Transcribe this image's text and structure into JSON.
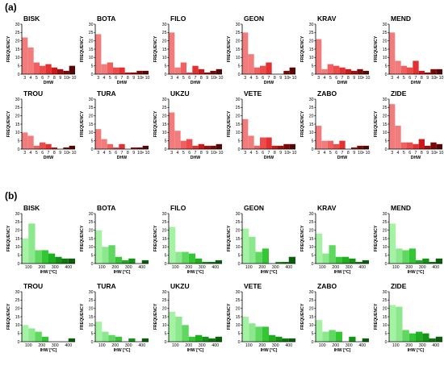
{
  "panel_labels": [
    "(a)",
    "(b)"
  ],
  "chart_data": [
    {
      "group": "(a)",
      "type": "bar",
      "title": "BISK",
      "xlabel": "DHW",
      "ylabel": "FREQUENCY",
      "ylim": [
        0,
        30
      ],
      "yticks": [
        0,
        5,
        10,
        15,
        20,
        25,
        30
      ],
      "categories": [
        "3",
        "4",
        "5",
        "6",
        "7",
        "8",
        "9",
        "10",
        "> 10"
      ],
      "values": [
        22,
        16,
        7,
        5,
        6,
        4,
        3,
        2,
        5
      ],
      "colors": [
        "#f27b7b",
        "#f27b7b",
        "#f06060",
        "#ee4b4b",
        "#e33030",
        "#cc1a1a",
        "#a01010",
        "#7a0a0a",
        "#5a0505"
      ]
    },
    {
      "group": "(a)",
      "type": "bar",
      "title": "BOTA",
      "xlabel": "DHW",
      "ylabel": "FREQUENCY",
      "ylim": [
        0,
        30
      ],
      "yticks": [
        0,
        5,
        10,
        15,
        20,
        25,
        30
      ],
      "categories": [
        "3",
        "4",
        "5",
        "6",
        "7",
        "8",
        "9",
        "10",
        "> 10"
      ],
      "values": [
        24,
        6,
        7,
        4,
        4,
        1,
        1,
        2,
        2
      ],
      "colors": [
        "#f27b7b",
        "#f27b7b",
        "#f06060",
        "#ee4b4b",
        "#e33030",
        "#cc1a1a",
        "#a01010",
        "#7a0a0a",
        "#5a0505"
      ]
    },
    {
      "group": "(a)",
      "type": "bar",
      "title": "FILO",
      "xlabel": "DHW",
      "ylabel": "FREQUENCY",
      "ylim": [
        0,
        30
      ],
      "yticks": [
        0,
        5,
        10,
        15,
        20,
        25,
        30
      ],
      "categories": [
        "3",
        "4",
        "5",
        "6",
        "7",
        "8",
        "9",
        "10",
        "> 10"
      ],
      "values": [
        25,
        4,
        7,
        1,
        5,
        3,
        1,
        2,
        3
      ],
      "colors": [
        "#f27b7b",
        "#f27b7b",
        "#f06060",
        "#ee4b4b",
        "#e33030",
        "#cc1a1a",
        "#a01010",
        "#7a0a0a",
        "#5a0505"
      ]
    },
    {
      "group": "(a)",
      "type": "bar",
      "title": "GEON",
      "xlabel": "DHW",
      "ylabel": "FREQUENCY",
      "ylim": [
        0,
        30
      ],
      "yticks": [
        0,
        5,
        10,
        15,
        20,
        25,
        30
      ],
      "categories": [
        "3",
        "4",
        "5",
        "6",
        "7",
        "8",
        "9",
        "10",
        "> 10"
      ],
      "values": [
        25,
        12,
        4,
        5,
        7,
        0,
        0,
        2,
        4
      ],
      "colors": [
        "#f27b7b",
        "#f27b7b",
        "#f06060",
        "#ee4b4b",
        "#e33030",
        "#cc1a1a",
        "#a01010",
        "#7a0a0a",
        "#5a0505"
      ]
    },
    {
      "group": "(a)",
      "type": "bar",
      "title": "KRAV",
      "xlabel": "DHW",
      "ylabel": "FREQUENCY",
      "ylim": [
        0,
        30
      ],
      "yticks": [
        0,
        5,
        10,
        15,
        20,
        25,
        30
      ],
      "categories": [
        "3",
        "4",
        "5",
        "6",
        "7",
        "8",
        "9",
        "10",
        "> 10"
      ],
      "values": [
        21,
        3,
        6,
        5,
        4,
        3,
        2,
        3,
        2
      ],
      "colors": [
        "#f27b7b",
        "#f27b7b",
        "#f06060",
        "#ee4b4b",
        "#e33030",
        "#cc1a1a",
        "#a01010",
        "#7a0a0a",
        "#5a0505"
      ]
    },
    {
      "group": "(a)",
      "type": "bar",
      "title": "MEND",
      "xlabel": "DHW",
      "ylabel": "FREQUENCY",
      "ylim": [
        0,
        30
      ],
      "yticks": [
        0,
        5,
        10,
        15,
        20,
        25,
        30
      ],
      "categories": [
        "3",
        "4",
        "5",
        "6",
        "7",
        "8",
        "9",
        "10",
        "> 10"
      ],
      "values": [
        25,
        8,
        5,
        4,
        8,
        2,
        1,
        3,
        3
      ],
      "colors": [
        "#f27b7b",
        "#f27b7b",
        "#f06060",
        "#ee4b4b",
        "#e33030",
        "#cc1a1a",
        "#a01010",
        "#7a0a0a",
        "#5a0505"
      ]
    },
    {
      "group": "(a)",
      "type": "bar",
      "title": "TROU",
      "xlabel": "DHW",
      "ylabel": "FREQUENCY",
      "ylim": [
        0,
        30
      ],
      "yticks": [
        0,
        5,
        10,
        15,
        20,
        25,
        30
      ],
      "categories": [
        "3",
        "4",
        "5",
        "6",
        "7",
        "8",
        "9",
        "10",
        "> 10"
      ],
      "values": [
        10,
        8,
        2,
        4,
        3,
        1,
        0,
        1,
        2
      ],
      "colors": [
        "#f27b7b",
        "#f27b7b",
        "#f06060",
        "#ee4b4b",
        "#e33030",
        "#cc1a1a",
        "#a01010",
        "#7a0a0a",
        "#5a0505"
      ]
    },
    {
      "group": "(a)",
      "type": "bar",
      "title": "TURA",
      "xlabel": "DHW",
      "ylabel": "FREQUENCY",
      "ylim": [
        0,
        30
      ],
      "yticks": [
        0,
        5,
        10,
        15,
        20,
        25,
        30
      ],
      "categories": [
        "3",
        "4",
        "5",
        "6",
        "7",
        "8",
        "9",
        "10",
        "> 10"
      ],
      "values": [
        12,
        6,
        3,
        1,
        3,
        0,
        1,
        1,
        2
      ],
      "colors": [
        "#f27b7b",
        "#f27b7b",
        "#f06060",
        "#ee4b4b",
        "#e33030",
        "#cc1a1a",
        "#a01010",
        "#7a0a0a",
        "#5a0505"
      ]
    },
    {
      "group": "(a)",
      "type": "bar",
      "title": "UKZU",
      "xlabel": "DHW",
      "ylabel": "FREQUENCY",
      "ylim": [
        0,
        30
      ],
      "yticks": [
        0,
        5,
        10,
        15,
        20,
        25,
        30
      ],
      "categories": [
        "3",
        "4",
        "5",
        "6",
        "7",
        "8",
        "9",
        "10",
        "> 10"
      ],
      "values": [
        22,
        11,
        5,
        6,
        2,
        3,
        2,
        2,
        3
      ],
      "colors": [
        "#f27b7b",
        "#f27b7b",
        "#f06060",
        "#ee4b4b",
        "#e33030",
        "#cc1a1a",
        "#a01010",
        "#7a0a0a",
        "#5a0505"
      ]
    },
    {
      "group": "(a)",
      "type": "bar",
      "title": "VETE",
      "xlabel": "DHW",
      "ylabel": "FREQUENCY",
      "ylim": [
        0,
        30
      ],
      "yticks": [
        0,
        5,
        10,
        15,
        20,
        25,
        30
      ],
      "categories": [
        "3",
        "4",
        "5",
        "6",
        "7",
        "8",
        "9",
        "10",
        "> 10"
      ],
      "values": [
        18,
        8,
        2,
        7,
        7,
        2,
        2,
        3,
        3
      ],
      "colors": [
        "#f27b7b",
        "#f27b7b",
        "#f06060",
        "#ee4b4b",
        "#e33030",
        "#cc1a1a",
        "#a01010",
        "#7a0a0a",
        "#5a0505"
      ]
    },
    {
      "group": "(a)",
      "type": "bar",
      "title": "ZABO",
      "xlabel": "DHW",
      "ylabel": "FREQUENCY",
      "ylim": [
        0,
        30
      ],
      "yticks": [
        0,
        5,
        10,
        15,
        20,
        25,
        30
      ],
      "categories": [
        "3",
        "4",
        "5",
        "6",
        "7",
        "8",
        "9",
        "10",
        "> 10"
      ],
      "values": [
        14,
        5,
        5,
        3,
        5,
        0,
        1,
        2,
        2
      ],
      "colors": [
        "#f27b7b",
        "#f27b7b",
        "#f06060",
        "#ee4b4b",
        "#e33030",
        "#cc1a1a",
        "#a01010",
        "#7a0a0a",
        "#5a0505"
      ]
    },
    {
      "group": "(a)",
      "type": "bar",
      "title": "ZIDE",
      "xlabel": "DHW",
      "ylabel": "FREQUENCY",
      "ylim": [
        0,
        30
      ],
      "yticks": [
        0,
        5,
        10,
        15,
        20,
        25,
        30
      ],
      "categories": [
        "3",
        "4",
        "5",
        "6",
        "7",
        "8",
        "9",
        "10",
        "> 10"
      ],
      "values": [
        27,
        14,
        4,
        4,
        3,
        6,
        2,
        4,
        3
      ],
      "colors": [
        "#f27b7b",
        "#f27b7b",
        "#f06060",
        "#ee4b4b",
        "#e33030",
        "#cc1a1a",
        "#a01010",
        "#7a0a0a",
        "#5a0505"
      ]
    },
    {
      "group": "(b)",
      "type": "bar",
      "title": "BISK",
      "xlabel": "IHW [°C]",
      "ylabel": "FREQUENCY",
      "ylim": [
        0,
        30
      ],
      "yticks": [
        0,
        5,
        10,
        15,
        20,
        25,
        30
      ],
      "xticks": [
        100,
        200,
        300,
        400
      ],
      "xrange": [
        50,
        450
      ],
      "bin_width": 50,
      "x": [
        50,
        100,
        150,
        200,
        250,
        300,
        350,
        400
      ],
      "values": [
        15,
        24,
        8,
        8,
        6,
        4,
        3,
        3
      ],
      "colors": [
        "#a4f2a4",
        "#8ce88c",
        "#5ed85e",
        "#33c833",
        "#1fb01f",
        "#149414",
        "#0e7a0e",
        "#0a600a"
      ]
    },
    {
      "group": "(b)",
      "type": "bar",
      "title": "BOTA",
      "xlabel": "IHW [°C]",
      "ylabel": "FREQUENCY",
      "ylim": [
        0,
        30
      ],
      "yticks": [
        0,
        5,
        10,
        15,
        20,
        25,
        30
      ],
      "xticks": [
        100,
        200,
        300,
        400
      ],
      "xrange": [
        50,
        450
      ],
      "bin_width": 50,
      "x": [
        50,
        100,
        150,
        200,
        250,
        300,
        350,
        400
      ],
      "values": [
        20,
        10,
        11,
        4,
        2,
        3,
        0,
        2
      ],
      "colors": [
        "#a4f2a4",
        "#8ce88c",
        "#5ed85e",
        "#33c833",
        "#1fb01f",
        "#149414",
        "#0e7a0e",
        "#0a600a"
      ]
    },
    {
      "group": "(b)",
      "type": "bar",
      "title": "FILO",
      "xlabel": "IHW [°C]",
      "ylabel": "FREQUENCY",
      "ylim": [
        0,
        30
      ],
      "yticks": [
        0,
        5,
        10,
        15,
        20,
        25,
        30
      ],
      "xticks": [
        100,
        200,
        300,
        400
      ],
      "xrange": [
        50,
        450
      ],
      "bin_width": 50,
      "x": [
        50,
        100,
        150,
        200,
        250,
        300,
        350,
        400
      ],
      "values": [
        22,
        7,
        7,
        6,
        3,
        1,
        1,
        2
      ],
      "colors": [
        "#a4f2a4",
        "#8ce88c",
        "#5ed85e",
        "#33c833",
        "#1fb01f",
        "#149414",
        "#0e7a0e",
        "#0a600a"
      ]
    },
    {
      "group": "(b)",
      "type": "bar",
      "title": "GEON",
      "xlabel": "IHW [°C]",
      "ylabel": "FREQUENCY",
      "ylim": [
        0,
        30
      ],
      "yticks": [
        0,
        5,
        10,
        15,
        20,
        25,
        30
      ],
      "xticks": [
        100,
        200,
        300,
        400
      ],
      "xrange": [
        50,
        450
      ],
      "bin_width": 50,
      "x": [
        50,
        100,
        150,
        200,
        250,
        300,
        350,
        400
      ],
      "values": [
        21,
        16,
        7,
        9,
        0,
        1,
        1,
        4
      ],
      "colors": [
        "#a4f2a4",
        "#8ce88c",
        "#5ed85e",
        "#33c833",
        "#1fb01f",
        "#149414",
        "#0e7a0e",
        "#0a600a"
      ]
    },
    {
      "group": "(b)",
      "type": "bar",
      "title": "KRAV",
      "xlabel": "IHW [°C]",
      "ylabel": "FREQUENCY",
      "ylim": [
        0,
        30
      ],
      "yticks": [
        0,
        5,
        10,
        15,
        20,
        25,
        30
      ],
      "xticks": [
        100,
        200,
        300,
        400
      ],
      "xrange": [
        50,
        450
      ],
      "bin_width": 50,
      "x": [
        50,
        100,
        150,
        200,
        250,
        300,
        350,
        400
      ],
      "values": [
        18,
        6,
        11,
        4,
        4,
        3,
        1,
        2
      ],
      "colors": [
        "#a4f2a4",
        "#8ce88c",
        "#5ed85e",
        "#33c833",
        "#1fb01f",
        "#149414",
        "#0e7a0e",
        "#0a600a"
      ]
    },
    {
      "group": "(b)",
      "type": "bar",
      "title": "MEND",
      "xlabel": "IHW [°C]",
      "ylabel": "FREQUENCY",
      "ylim": [
        0,
        30
      ],
      "yticks": [
        0,
        5,
        10,
        15,
        20,
        25,
        30
      ],
      "xticks": [
        100,
        200,
        300,
        400
      ],
      "xrange": [
        50,
        450
      ],
      "bin_width": 50,
      "x": [
        50,
        100,
        150,
        200,
        250,
        300,
        350,
        400
      ],
      "values": [
        24,
        9,
        8,
        9,
        2,
        3,
        1,
        3
      ],
      "colors": [
        "#a4f2a4",
        "#8ce88c",
        "#5ed85e",
        "#33c833",
        "#1fb01f",
        "#149414",
        "#0e7a0e",
        "#0a600a"
      ]
    },
    {
      "group": "(b)",
      "type": "bar",
      "title": "TROU",
      "xlabel": "IHW [°C]",
      "ylabel": "FREQUENCY",
      "ylim": [
        0,
        30
      ],
      "yticks": [
        0,
        5,
        10,
        15,
        20,
        25,
        30
      ],
      "xticks": [
        100,
        200,
        300,
        400
      ],
      "xrange": [
        50,
        450
      ],
      "bin_width": 50,
      "x": [
        50,
        100,
        150,
        200,
        250,
        300,
        350,
        400
      ],
      "values": [
        10,
        8,
        6,
        3,
        0,
        0,
        0,
        2
      ],
      "colors": [
        "#a4f2a4",
        "#8ce88c",
        "#5ed85e",
        "#33c833",
        "#1fb01f",
        "#149414",
        "#0e7a0e",
        "#0a600a"
      ]
    },
    {
      "group": "(b)",
      "type": "bar",
      "title": "TURA",
      "xlabel": "IHW [°C]",
      "ylabel": "FREQUENCY",
      "ylim": [
        0,
        30
      ],
      "yticks": [
        0,
        5,
        10,
        15,
        20,
        25,
        30
      ],
      "xticks": [
        100,
        200,
        300,
        400
      ],
      "xrange": [
        50,
        450
      ],
      "bin_width": 50,
      "x": [
        50,
        100,
        150,
        200,
        250,
        300,
        350,
        400
      ],
      "values": [
        12,
        6,
        4,
        3,
        0,
        2,
        0,
        2
      ],
      "colors": [
        "#a4f2a4",
        "#8ce88c",
        "#5ed85e",
        "#33c833",
        "#1fb01f",
        "#149414",
        "#0e7a0e",
        "#0a600a"
      ]
    },
    {
      "group": "(b)",
      "type": "bar",
      "title": "UKZU",
      "xlabel": "IHW [°C]",
      "ylabel": "FREQUENCY",
      "ylim": [
        0,
        30
      ],
      "yticks": [
        0,
        5,
        10,
        15,
        20,
        25,
        30
      ],
      "xticks": [
        100,
        200,
        300,
        400
      ],
      "xrange": [
        50,
        450
      ],
      "bin_width": 50,
      "x": [
        50,
        100,
        150,
        200,
        250,
        300,
        350,
        400
      ],
      "values": [
        18,
        15,
        10,
        3,
        4,
        3,
        2,
        3
      ],
      "colors": [
        "#a4f2a4",
        "#8ce88c",
        "#5ed85e",
        "#33c833",
        "#1fb01f",
        "#149414",
        "#0e7a0e",
        "#0a600a"
      ]
    },
    {
      "group": "(b)",
      "type": "bar",
      "title": "VETE",
      "xlabel": "IHW [°C]",
      "ylabel": "FREQUENCY",
      "ylim": [
        0,
        30
      ],
      "yticks": [
        0,
        5,
        10,
        15,
        20,
        25,
        30
      ],
      "xticks": [
        100,
        200,
        300,
        400
      ],
      "xrange": [
        50,
        450
      ],
      "bin_width": 50,
      "x": [
        50,
        100,
        150,
        200,
        250,
        300,
        350,
        400
      ],
      "values": [
        15,
        11,
        9,
        9,
        4,
        3,
        2,
        2
      ],
      "colors": [
        "#a4f2a4",
        "#8ce88c",
        "#5ed85e",
        "#33c833",
        "#1fb01f",
        "#149414",
        "#0e7a0e",
        "#0a600a"
      ]
    },
    {
      "group": "(b)",
      "type": "bar",
      "title": "ZABO",
      "xlabel": "IHW [°C]",
      "ylabel": "FREQUENCY",
      "ylim": [
        0,
        30
      ],
      "yticks": [
        0,
        5,
        10,
        15,
        20,
        25,
        30
      ],
      "xticks": [
        100,
        200,
        300,
        400
      ],
      "xrange": [
        50,
        450
      ],
      "bin_width": 50,
      "x": [
        50,
        100,
        150,
        200,
        250,
        300,
        350,
        400
      ],
      "values": [
        13,
        6,
        7,
        6,
        0,
        3,
        0,
        2
      ],
      "colors": [
        "#a4f2a4",
        "#8ce88c",
        "#5ed85e",
        "#33c833",
        "#1fb01f",
        "#149414",
        "#0e7a0e",
        "#0a600a"
      ]
    },
    {
      "group": "(b)",
      "type": "bar",
      "title": "ZIDE",
      "xlabel": "IHW [°C]",
      "ylabel": "FREQUENCY",
      "ylim": [
        0,
        30
      ],
      "yticks": [
        0,
        5,
        10,
        15,
        20,
        25,
        30
      ],
      "xticks": [
        100,
        200,
        300,
        400
      ],
      "xrange": [
        50,
        450
      ],
      "bin_width": 50,
      "x": [
        50,
        100,
        150,
        200,
        250,
        300,
        350,
        400
      ],
      "values": [
        22,
        21,
        7,
        5,
        6,
        5,
        2,
        3
      ],
      "colors": [
        "#a4f2a4",
        "#8ce88c",
        "#5ed85e",
        "#33c833",
        "#1fb01f",
        "#149414",
        "#0e7a0e",
        "#0a600a"
      ]
    }
  ]
}
